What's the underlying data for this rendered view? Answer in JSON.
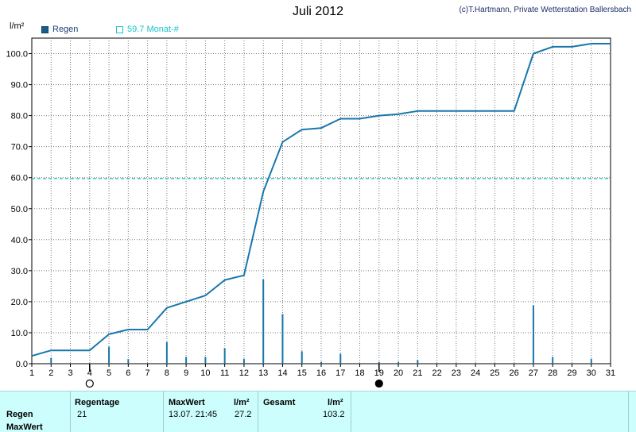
{
  "header": {
    "title": "Juli 2012",
    "credit": "(c)T.Hartmann, Private Wetterstation Ballersbach",
    "yunit": "l/m²"
  },
  "legend": {
    "rain_label": "Regen",
    "month_label": "59.7 Monat-#"
  },
  "colors": {
    "line": "#1877ac",
    "bars": "#1877ac",
    "reference": "#19c3c6",
    "grid": "#7a7a7a",
    "summary_bg": "#ccfefe"
  },
  "chart_data": {
    "type": "bar",
    "title": "Juli 2012",
    "ylabel": "l/m²",
    "xlim": [
      1,
      31
    ],
    "ylim": [
      0,
      105
    ],
    "yticks": [
      0.0,
      10.0,
      20.0,
      30.0,
      40.0,
      50.0,
      60.0,
      70.0,
      80.0,
      90.0,
      100.0
    ],
    "yticks_text": [
      "0.0",
      "10.0",
      "20.0",
      "30.0",
      "40.0",
      "50.0",
      "60.0",
      "70.0",
      "80.0",
      "90.0",
      "100.0"
    ],
    "xticks": [
      1,
      2,
      3,
      4,
      5,
      6,
      7,
      8,
      9,
      10,
      11,
      12,
      13,
      14,
      15,
      16,
      17,
      18,
      19,
      20,
      21,
      22,
      23,
      24,
      25,
      26,
      27,
      28,
      29,
      30,
      31
    ],
    "grid": true,
    "series": [
      {
        "name": "Regen",
        "type": "bar",
        "x": [
          2,
          5,
          6,
          8,
          9,
          10,
          11,
          12,
          13,
          14,
          15,
          16,
          17,
          19,
          20,
          21,
          27,
          28,
          30
        ],
        "values": [
          1.8,
          5.5,
          1.5,
          7.0,
          2.2,
          2.2,
          5.0,
          1.6,
          27.2,
          16.0,
          4.0,
          0.6,
          3.2,
          0.6,
          0.6,
          1.2,
          18.8,
          2.2,
          1.6
        ]
      },
      {
        "name": "",
        "type": "line",
        "x": [
          1,
          2,
          3,
          4,
          5,
          6,
          7,
          8,
          9,
          10,
          11,
          12,
          13,
          14,
          15,
          16,
          17,
          18,
          19,
          20,
          21,
          22,
          23,
          24,
          25,
          26,
          27,
          28,
          29,
          30,
          31
        ],
        "values": [
          2.5,
          4.3,
          4.3,
          4.3,
          9.5,
          11.0,
          11.0,
          18.0,
          20.0,
          22.0,
          27.0,
          28.5,
          55.5,
          71.5,
          75.5,
          76.0,
          79.0,
          79.0,
          80.0,
          80.5,
          81.5,
          81.5,
          81.5,
          81.5,
          81.5,
          81.5,
          100.0,
          102.2,
          102.2,
          103.2,
          103.2
        ]
      }
    ],
    "reference_line": {
      "name": "59.7 Monat-#",
      "value": 59.7
    },
    "moon_markers": [
      {
        "day": 4,
        "phase": "full moon"
      },
      {
        "day": 19,
        "phase": "new moon"
      }
    ]
  },
  "summary": {
    "row_labels": [
      "Regen",
      "MaxWert"
    ],
    "regentage_label": "Regentage",
    "regentage_value": "21",
    "maxwert_label": "MaxWert",
    "maxwert_unit": "l/m²",
    "maxwert_date": "13.07.  21:45",
    "maxwert_value": "27.2",
    "gesamt_label": "Gesamt",
    "gesamt_unit": "l/m²",
    "gesamt_value": "103.2"
  }
}
